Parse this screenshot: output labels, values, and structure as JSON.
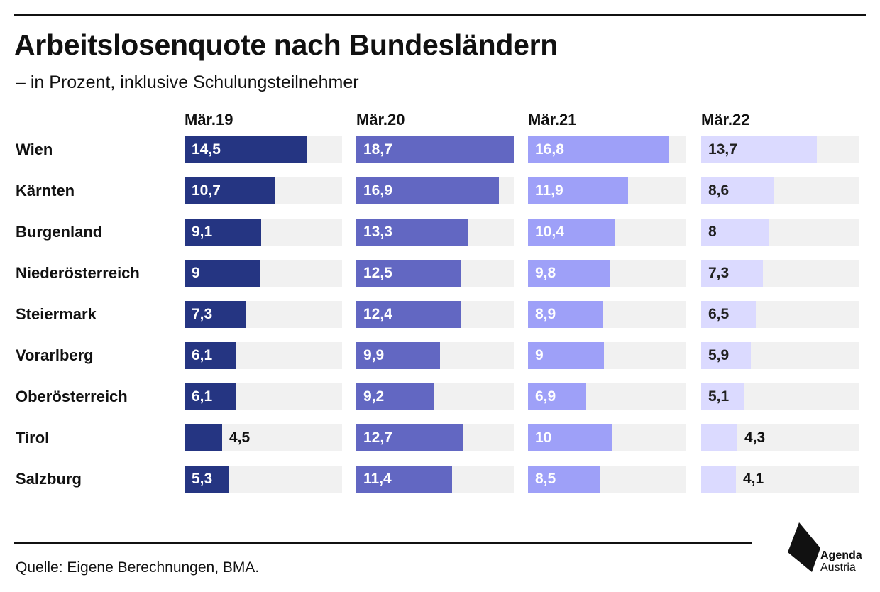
{
  "header": {
    "title": "Arbeitslosenquote nach Bundesländern",
    "subtitle": "– in Prozent, inklusive Schulungsteilnehmer"
  },
  "footer": {
    "source": "Quelle: Eigene Berechnungen, BMA.",
    "logo_line1": "Agenda",
    "logo_line2": "Austria"
  },
  "colors": {
    "Mär.19": "#253582",
    "Mär.20": "#6267c2",
    "Mär.21": "#9ea0f8",
    "Mär.22": "#dbdaff",
    "track": "#f1f1f1"
  },
  "chart_data": {
    "type": "bar",
    "orientation": "horizontal",
    "title": "Arbeitslosenquote nach Bundesländern",
    "subtitle": "– in Prozent, inklusive Schulungsteilnehmer",
    "categories": [
      "Wien",
      "Kärnten",
      "Burgenland",
      "Niederösterreich",
      "Steiermark",
      "Vorarlberg",
      "Oberösterreich",
      "Tirol",
      "Salzburg"
    ],
    "xlim": [
      0,
      18.7
    ],
    "grid": false,
    "legend": "none",
    "series": [
      {
        "name": "Mär.19",
        "values": [
          "14,5",
          "10,7",
          "9,1",
          "9",
          "7,3",
          "6,1",
          "6,1",
          "4,5",
          "5,3"
        ]
      },
      {
        "name": "Mär.20",
        "values": [
          "18,7",
          "16,9",
          "13,3",
          "12,5",
          "12,4",
          "9,9",
          "9,2",
          "12,7",
          "11,4"
        ]
      },
      {
        "name": "Mär.21",
        "values": [
          "16,8",
          "11,9",
          "10,4",
          "9,8",
          "8,9",
          "9",
          "6,9",
          "10",
          "8,5"
        ]
      },
      {
        "name": "Mär.22",
        "values": [
          "13,7",
          "8,6",
          "8",
          "7,3",
          "6,5",
          "5,9",
          "5,1",
          "4,3",
          "4,1"
        ]
      }
    ]
  }
}
